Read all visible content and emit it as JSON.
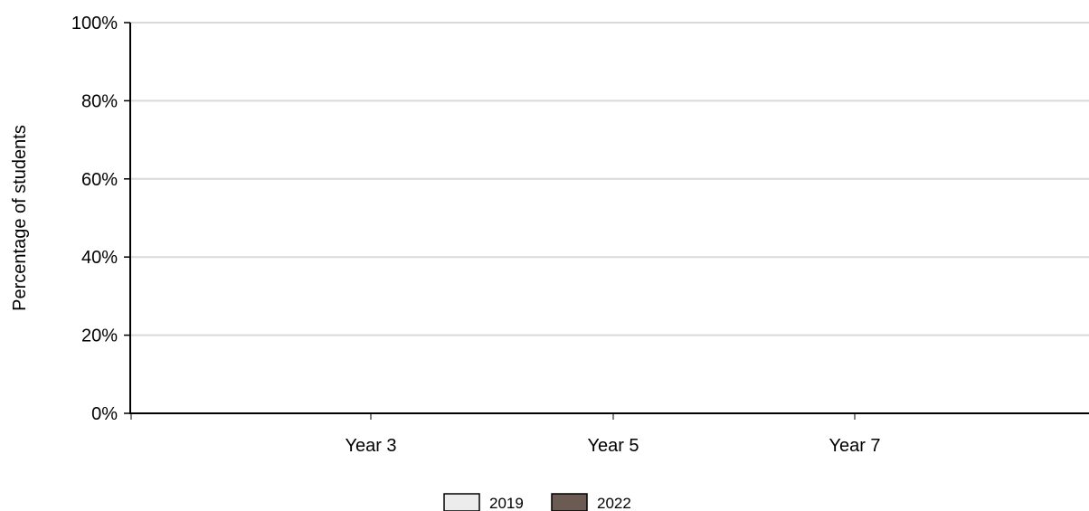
{
  "chart_data": {
    "type": "bar",
    "title": "",
    "xlabel": "",
    "ylabel": "Percentage of students",
    "categories": [
      "Year 3",
      "Year 5",
      "Year 7"
    ],
    "ylim": [
      0,
      100
    ],
    "y_ticks": [
      "0%",
      "20%",
      "40%",
      "60%",
      "80%",
      "100%"
    ],
    "y_tick_values": [
      0,
      20,
      40,
      60,
      80,
      100
    ],
    "grid": true,
    "legend_position": "bottom-center",
    "series": [
      {
        "name": "2019",
        "color": "#ececec",
        "values": [
          null,
          null,
          null
        ]
      },
      {
        "name": "2022",
        "color": "#6b5b52",
        "values": [
          null,
          null,
          null
        ]
      }
    ]
  }
}
